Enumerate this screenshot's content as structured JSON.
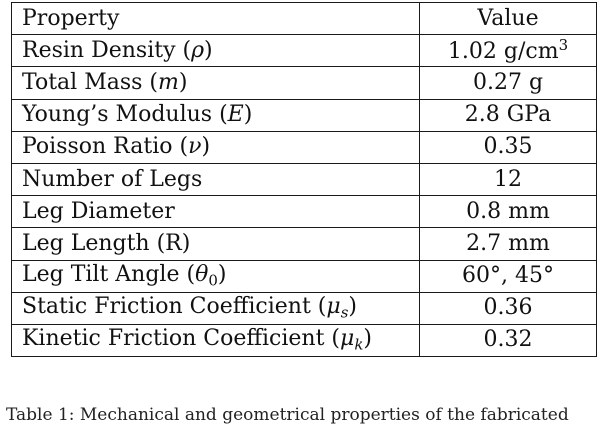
{
  "table": {
    "header": {
      "property": "Property",
      "value": "Value"
    },
    "rows": [
      {
        "label": "Resin Density",
        "symbol": "ρ",
        "sub": "",
        "value": "1.02 g/cm",
        "value_sup": "3"
      },
      {
        "label": "Total Mass",
        "symbol": "m",
        "sub": "",
        "value": "0.27 g"
      },
      {
        "label": "Young’s Modulus",
        "symbol": "E",
        "sub": "",
        "value": "2.8 GPa"
      },
      {
        "label": "Poisson Ratio",
        "symbol": "ν",
        "sub": "",
        "value": "0.35"
      },
      {
        "label": "Number of Legs",
        "value": "12"
      },
      {
        "label": "Leg Diameter",
        "value": "0.8 mm"
      },
      {
        "label": "Leg Length (R)",
        "value": "2.7 mm"
      },
      {
        "label": "Leg Tilt Angle",
        "symbol": "θ",
        "sub": "0",
        "value": "60°, 45°"
      },
      {
        "label": "Static Friction Coefficient",
        "symbol": "μ",
        "sub": "s",
        "value": "0.36"
      },
      {
        "label": "Kinetic Friction Coefficient",
        "symbol": "μ",
        "sub": "k",
        "value": "0.32"
      }
    ]
  },
  "caption": "Table 1: Mechanical and geometrical properties of the fabricated"
}
